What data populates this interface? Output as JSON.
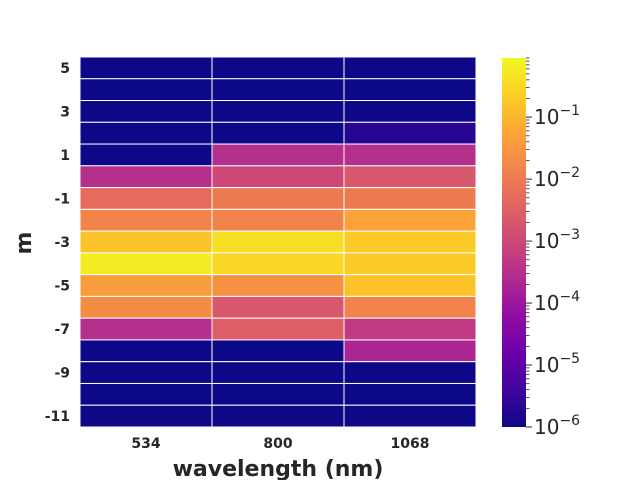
{
  "chart_data": {
    "type": "heatmap",
    "title": "",
    "xlabel": "wavelength (nm)",
    "ylabel": "m",
    "x_categories": [
      "534",
      "800",
      "1068"
    ],
    "y_categories": [
      5,
      4,
      3,
      2,
      1,
      0,
      -1,
      -2,
      -3,
      -4,
      -5,
      -6,
      -7,
      -8,
      -9,
      -10,
      -11
    ],
    "y_tick_labels": [
      "5",
      "3",
      "1",
      "-1",
      "-3",
      "-5",
      "-7",
      "-9",
      "-11"
    ],
    "values": [
      [
        1e-06,
        1e-06,
        1e-06
      ],
      [
        1e-06,
        1e-06,
        1e-06
      ],
      [
        1e-06,
        1e-06,
        1e-06
      ],
      [
        1e-06,
        1e-06,
        2e-06
      ],
      [
        1e-06,
        0.0003,
        0.0003
      ],
      [
        0.0003,
        0.001,
        0.002
      ],
      [
        0.005,
        0.01,
        0.01
      ],
      [
        0.015,
        0.015,
        0.05
      ],
      [
        0.15,
        0.4,
        0.2
      ],
      [
        0.6,
        0.3,
        0.2
      ],
      [
        0.04,
        0.025,
        0.15
      ],
      [
        0.02,
        0.002,
        0.015
      ],
      [
        0.0003,
        0.003,
        0.0005
      ],
      [
        1e-06,
        1e-06,
        0.0002
      ],
      [
        1e-06,
        1e-06,
        1e-06
      ],
      [
        1e-06,
        1e-06,
        1e-06
      ],
      [
        1e-06,
        1e-06,
        1e-06
      ]
    ],
    "colorbar": {
      "scale": "log",
      "range": [
        1e-06,
        0.9
      ],
      "colormap": "plasma",
      "tick_labels": [
        {
          "value": 1e-06,
          "base": "10",
          "exp": "−6"
        },
        {
          "value": 1e-05,
          "base": "10",
          "exp": "−5"
        },
        {
          "value": 0.0001,
          "base": "10",
          "exp": "−4"
        },
        {
          "value": 0.001,
          "base": "10",
          "exp": "−3"
        },
        {
          "value": 0.01,
          "base": "10",
          "exp": "−2"
        },
        {
          "value": 0.1,
          "base": "10",
          "exp": "−1"
        }
      ]
    },
    "grid_color": "#ffffff"
  }
}
